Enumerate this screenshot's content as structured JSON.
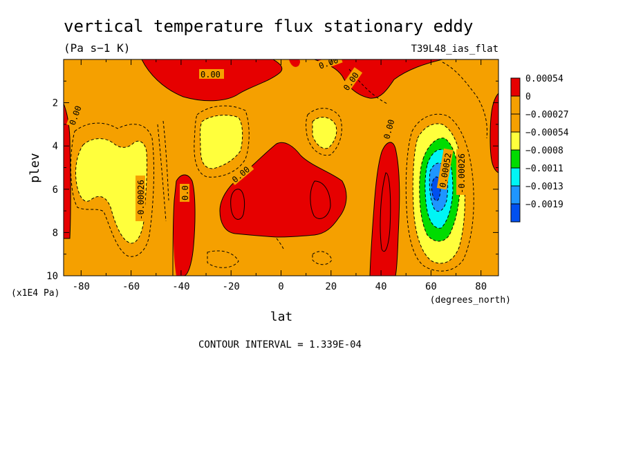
{
  "chart_data": {
    "type": "heatmap",
    "title": "vertical temperature flux stationary eddy",
    "units": "(Pa s−1 K)",
    "run_label": "T39L48_ias_flat",
    "xlabel": "lat",
    "xunits": "(degrees_north)",
    "ylabel": "plev",
    "yunits": "(x1E4 Pa)",
    "xlim": [
      -87,
      87
    ],
    "ylim": [
      10,
      0
    ],
    "x_ticks": [
      "-80",
      "-60",
      "-40",
      "-20",
      "0",
      "20",
      "40",
      "60",
      "80"
    ],
    "y_ticks": [
      "2",
      "4",
      "6",
      "8",
      "10"
    ],
    "colorbar": [
      {
        "label": "0.00054",
        "color": "#e60000"
      },
      {
        "label": "0",
        "color": "#f5a000"
      },
      {
        "label": "−0.00027",
        "color": "#f5a000"
      },
      {
        "label": "−0.00054",
        "color": "#ffff3c"
      },
      {
        "label": "−0.0008",
        "color": "#00dc00"
      },
      {
        "label": "−0.0011",
        "color": "#00f5f5"
      },
      {
        "label": "−0.0013",
        "color": "#1e96ff"
      },
      {
        "label": "−0.0019",
        "color": "#0050f0"
      }
    ],
    "contour_labels": [
      "0.00",
      "0.00",
      "0.00",
      "0.00",
      "0.00",
      "0.00",
      "-0.00026",
      "-0.00026",
      "0.00052",
      "0.0"
    ],
    "contour_interval": "CONTOUR INTERVAL = 1.339E-04"
  },
  "colors": {
    "background_fill": "#f5a000",
    "positive": "#e60000",
    "negative_weak": "#ffff3c",
    "negative_mid": "#00dc00",
    "negative_strong": "#00f5f5",
    "negative_stronger": "#1e96ff",
    "negative_min": "#0050f0"
  }
}
